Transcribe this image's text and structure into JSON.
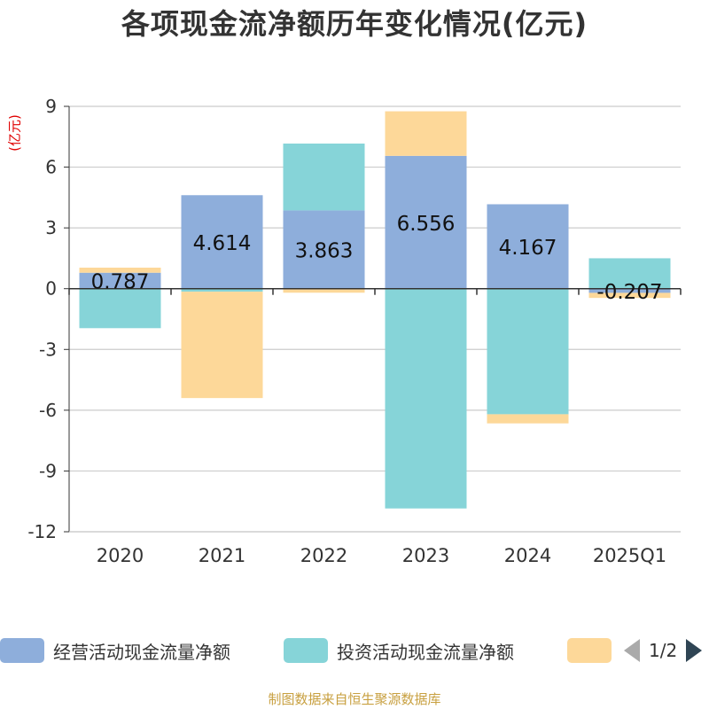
{
  "title": "各项现金流净额历年变化情况(亿元)",
  "unit_label": "(亿元)",
  "source": "制图数据来自恒生聚源数据库",
  "legend": {
    "items": [
      {
        "label": "经营活动现金流量净额",
        "color": "#8eaedb"
      },
      {
        "label": "投资活动现金流量净额",
        "color": "#86d4d8"
      },
      {
        "label": "",
        "color": "#fdd899"
      }
    ],
    "page": "1/2"
  },
  "chart_data": {
    "type": "bar",
    "stacked": true,
    "categories": [
      "2020",
      "2021",
      "2022",
      "2023",
      "2024",
      "2025Q1"
    ],
    "ylim": [
      -12,
      9
    ],
    "yticks": [
      9,
      6,
      3,
      0,
      -3,
      -6,
      -9,
      -12
    ],
    "grid": true,
    "series": [
      {
        "name": "经营活动现金流量净额",
        "color": "#8eaedb",
        "values": [
          0.787,
          4.614,
          3.863,
          6.556,
          4.167,
          -0.207
        ],
        "labels": [
          "0.787",
          "4.614",
          "3.863",
          "6.556",
          "4.167",
          "-0.207"
        ]
      },
      {
        "name": "投资活动现金流量净额",
        "color": "#86d4d8",
        "values": [
          -1.95,
          -0.15,
          3.3,
          -10.85,
          -6.2,
          1.5
        ]
      },
      {
        "color": "#fdd899",
        "values": [
          0.25,
          -5.25,
          -0.2,
          2.2,
          -0.45,
          -0.25
        ]
      }
    ]
  }
}
